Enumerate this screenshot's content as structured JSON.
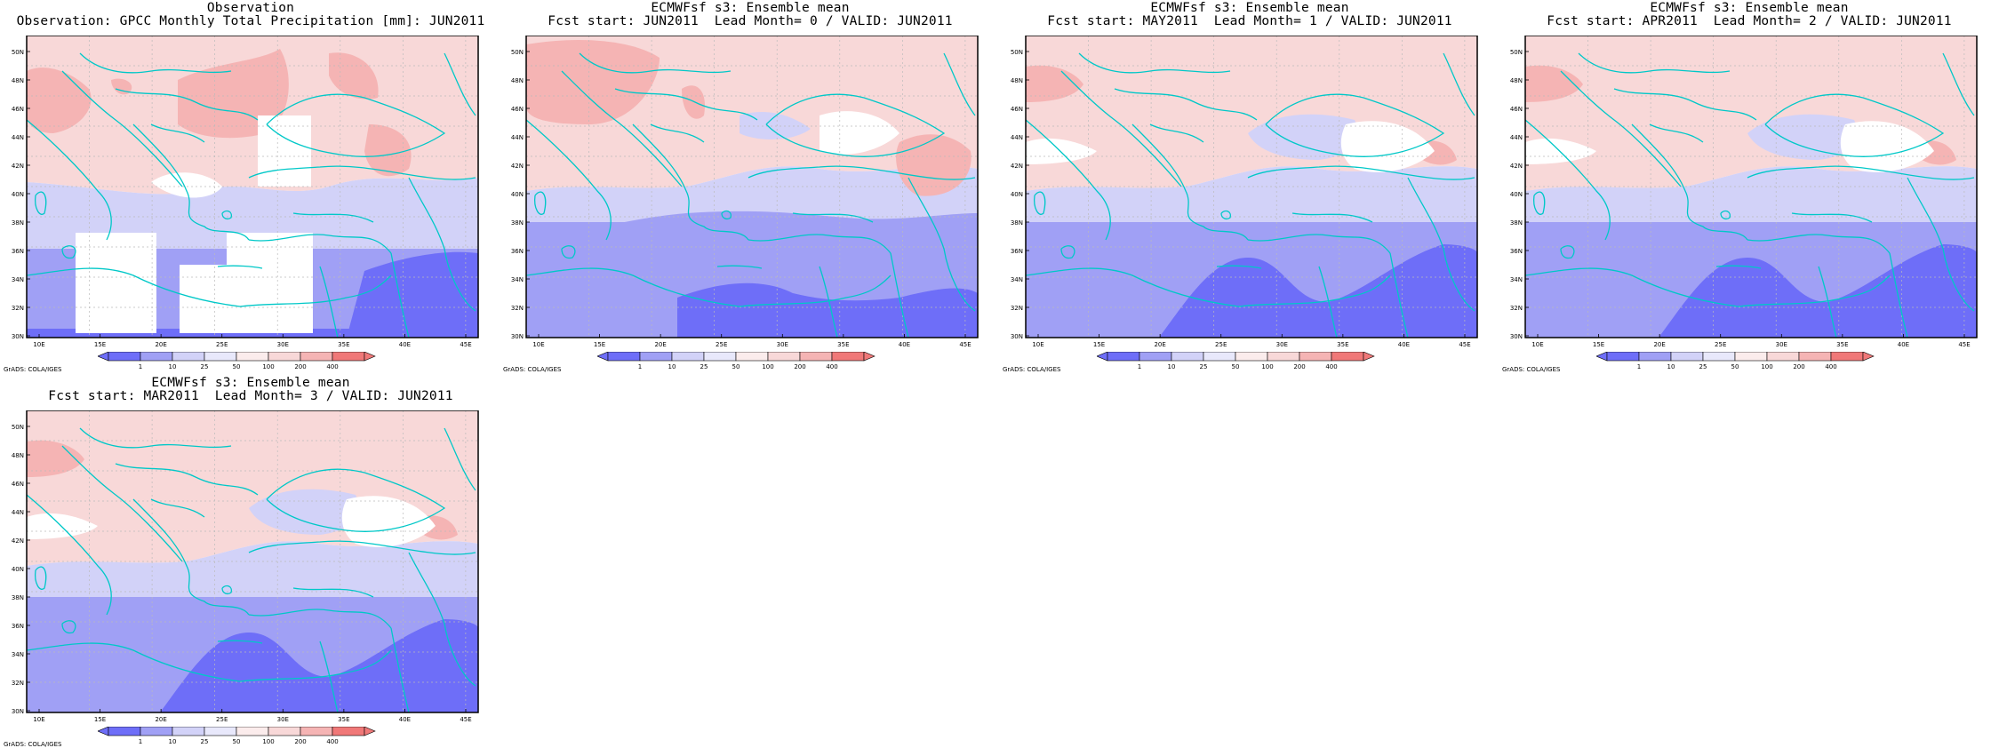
{
  "panels": [
    {
      "title1": "Observation",
      "title2": "Observation: GPCC Monthly Total Precipitation [mm]: JUN2011"
    },
    {
      "title1": "ECMWFsf s3: Ensemble mean",
      "title2": "Fcst start: JUN2011  Lead Month= 0 / VALID: JUN2011"
    },
    {
      "title1": "ECMWFsf s3: Ensemble mean",
      "title2": "Fcst start: MAY2011  Lead Month= 1 / VALID: JUN2011"
    },
    {
      "title1": "ECMWFsf s3: Ensemble mean",
      "title2": "Fcst start: APR2011  Lead Month= 2 / VALID: JUN2011"
    },
    {
      "title1": "ECMWFsf s3: Ensemble mean",
      "title2": "Fcst start: MAR2011  Lead Month= 3 / VALID: JUN2011"
    }
  ],
  "lat_ticks": [
    "50N",
    "48N",
    "46N",
    "44N",
    "42N",
    "40N",
    "38N",
    "36N",
    "34N",
    "32N",
    "30N"
  ],
  "lon_ticks": [
    "10E",
    "15E",
    "20E",
    "25E",
    "30E",
    "35E",
    "40E",
    "45E"
  ],
  "colorbar_labels": [
    "1",
    "10",
    "25",
    "50",
    "100",
    "200",
    "400"
  ],
  "credit": "GrADS: COLA/IGES",
  "colors": {
    "blue_dark": "#6e6ef8",
    "blue_mid": "#a0a0f5",
    "blue_light": "#d2d2f8",
    "red_light": "#f8d8d8",
    "red_mid": "#f5b4b4",
    "red_dark": "#f07878",
    "coast": "#00c8c8",
    "grid": "#bbbbbb"
  }
}
